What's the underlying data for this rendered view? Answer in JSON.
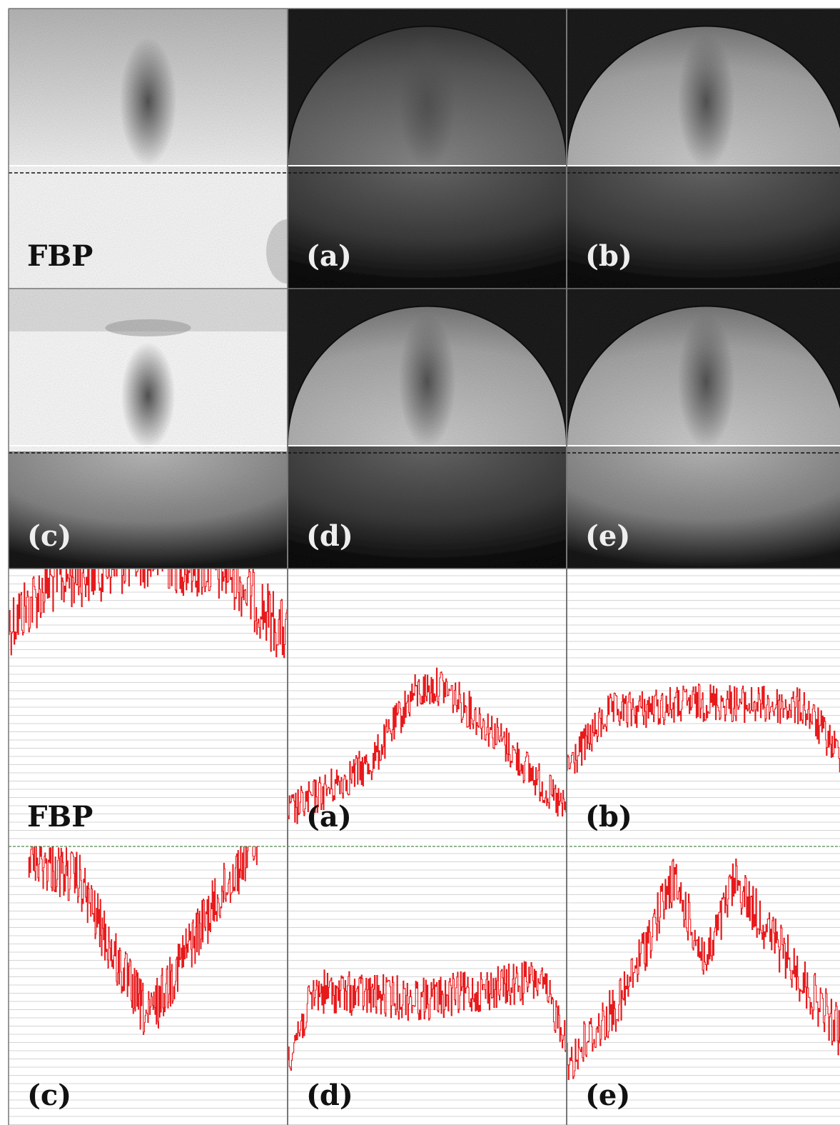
{
  "figure": {
    "image_labels": [
      "FBP",
      "(a)",
      "(b)",
      "(c)",
      "(d)",
      "(e)"
    ],
    "profile_labels": [
      "FBP",
      "(a)",
      "(b)",
      "(c)",
      "(d)",
      "(e)"
    ]
  }
}
